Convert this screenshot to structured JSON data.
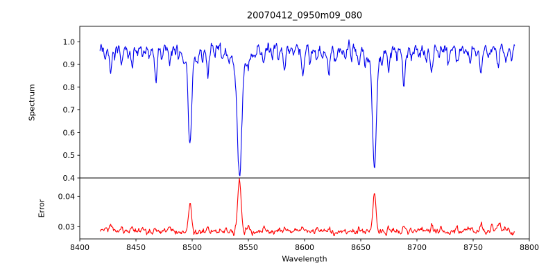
{
  "chart_data": {
    "type": "line",
    "title": "20070412_0950m09_080",
    "xlabel": "Wavelength",
    "xlim": [
      8400,
      8800
    ],
    "xticks": [
      8400,
      8450,
      8500,
      8550,
      8600,
      8650,
      8700,
      8750,
      8800
    ],
    "xtick_labels": [
      "8400",
      "8450",
      "8500",
      "8550",
      "8600",
      "8650",
      "8700",
      "8750",
      "8800"
    ],
    "x_data_range": [
      8418,
      8787
    ],
    "x_step": 0.5,
    "seed": 20070412,
    "grid": false,
    "legend": "none",
    "panels": [
      {
        "name": "spectrum",
        "ylabel": "Spectrum",
        "color": "#0000ee",
        "ylim": [
          0.4,
          1.068
        ],
        "yticks": [
          0.4,
          0.5,
          0.6,
          0.7,
          0.8,
          0.9,
          1.0
        ],
        "ytick_labels": [
          "0.4",
          "0.5",
          "0.6",
          "0.7",
          "0.8",
          "0.9",
          "1.0"
        ],
        "continuum": 0.968,
        "noise_sigma": 0.014,
        "features": [
          [
            8423,
            -0.045,
            0.8
          ],
          [
            8427.5,
            -0.1,
            1.1
          ],
          [
            8431,
            -0.04,
            0.8
          ],
          [
            8437,
            -0.055,
            0.9
          ],
          [
            8443,
            -0.04,
            0.8
          ],
          [
            8446.5,
            -0.075,
            1.0
          ],
          [
            8451,
            -0.045,
            0.8
          ],
          [
            8456,
            -0.055,
            0.9
          ],
          [
            8462,
            -0.045,
            0.8
          ],
          [
            8467.5,
            -0.15,
            1.1
          ],
          [
            8473,
            -0.045,
            0.8
          ],
          [
            8480,
            -0.055,
            0.9
          ],
          [
            8488,
            -0.045,
            0.8
          ],
          [
            8493,
            -0.04,
            0.8
          ],
          [
            8498.0,
            -0.36,
            1.5
          ],
          [
            8498.0,
            -0.05,
            5.0
          ],
          [
            8505,
            -0.04,
            0.8
          ],
          [
            8509,
            -0.04,
            0.8
          ],
          [
            8514,
            -0.095,
            1.1
          ],
          [
            8520,
            -0.04,
            0.8
          ],
          [
            8527,
            -0.045,
            0.8
          ],
          [
            8533,
            -0.04,
            0.8
          ],
          [
            8538,
            -0.045,
            0.9
          ],
          [
            8542.1,
            -0.5,
            1.9
          ],
          [
            8542.1,
            -0.06,
            7.0
          ],
          [
            8549,
            -0.045,
            0.9
          ],
          [
            8556,
            -0.045,
            0.8
          ],
          [
            8564,
            -0.055,
            0.9
          ],
          [
            8571,
            -0.045,
            0.8
          ],
          [
            8577,
            -0.04,
            0.8
          ],
          [
            8582,
            -0.09,
            1.0
          ],
          [
            8590,
            -0.045,
            0.8
          ],
          [
            8598.5,
            -0.11,
            1.1
          ],
          [
            8605,
            -0.045,
            0.8
          ],
          [
            8611,
            -0.06,
            0.9
          ],
          [
            8616,
            -0.04,
            0.8
          ],
          [
            8621.5,
            -0.1,
            1.0
          ],
          [
            8628,
            -0.045,
            0.8
          ],
          [
            8636,
            -0.045,
            0.8
          ],
          [
            8642,
            -0.04,
            0.8
          ],
          [
            8648,
            -0.06,
            0.9
          ],
          [
            8654,
            -0.045,
            0.8
          ],
          [
            8662.1,
            -0.47,
            1.7
          ],
          [
            8662.1,
            -0.055,
            6.0
          ],
          [
            8669,
            -0.045,
            0.8
          ],
          [
            8675,
            -0.09,
            1.0
          ],
          [
            8682,
            -0.045,
            0.8
          ],
          [
            8688.5,
            -0.17,
            1.1
          ],
          [
            8695,
            -0.045,
            0.8
          ],
          [
            8702,
            -0.055,
            0.9
          ],
          [
            8708,
            -0.04,
            0.8
          ],
          [
            8713,
            -0.09,
            1.0
          ],
          [
            8720,
            -0.045,
            0.8
          ],
          [
            8728,
            -0.045,
            0.8
          ],
          [
            8736,
            -0.07,
            1.0
          ],
          [
            8742,
            -0.045,
            0.8
          ],
          [
            8747.5,
            -0.06,
            0.9
          ],
          [
            8757,
            -0.11,
            1.0
          ],
          [
            8764,
            -0.045,
            0.8
          ],
          [
            8772,
            -0.08,
            1.0
          ],
          [
            8779,
            -0.055,
            0.9
          ],
          [
            8784,
            -0.04,
            0.8
          ]
        ]
      },
      {
        "name": "error",
        "ylabel": "Error",
        "color": "#ff0000",
        "ylim": [
          0.026,
          0.046
        ],
        "yticks": [
          0.03,
          0.04
        ],
        "ytick_labels": [
          "0.03",
          "0.04"
        ],
        "continuum": 0.0284,
        "noise_sigma": 0.0005,
        "features": [
          [
            8423,
            0.0015,
            1.0
          ],
          [
            8427.5,
            0.0028,
            1.2
          ],
          [
            8437,
            0.0012,
            1.0
          ],
          [
            8446.5,
            0.0015,
            1.0
          ],
          [
            8456,
            0.001,
            0.9
          ],
          [
            8467.5,
            0.0018,
            1.1
          ],
          [
            8480,
            0.001,
            0.9
          ],
          [
            8498.0,
            0.0095,
            1.3
          ],
          [
            8514,
            0.0012,
            1.0
          ],
          [
            8542.1,
            0.017,
            1.5
          ],
          [
            8549,
            0.001,
            0.9
          ],
          [
            8564,
            0.001,
            0.9
          ],
          [
            8582,
            0.001,
            1.0
          ],
          [
            8598.5,
            0.0012,
            1.0
          ],
          [
            8611,
            0.001,
            0.9
          ],
          [
            8621.5,
            0.0012,
            1.0
          ],
          [
            8648,
            0.001,
            0.9
          ],
          [
            8662.1,
            0.0125,
            1.4
          ],
          [
            8675,
            0.0015,
            1.0
          ],
          [
            8688.5,
            0.002,
            1.1
          ],
          [
            8702,
            0.001,
            0.9
          ],
          [
            8713,
            0.0012,
            1.0
          ],
          [
            8736,
            0.0012,
            1.0
          ],
          [
            8747.5,
            0.0012,
            1.0
          ],
          [
            8757,
            0.002,
            1.1
          ],
          [
            8767,
            0.0022,
            1.1
          ],
          [
            8773,
            0.0028,
            1.1
          ],
          [
            8780,
            0.0015,
            1.0
          ]
        ]
      }
    ]
  }
}
